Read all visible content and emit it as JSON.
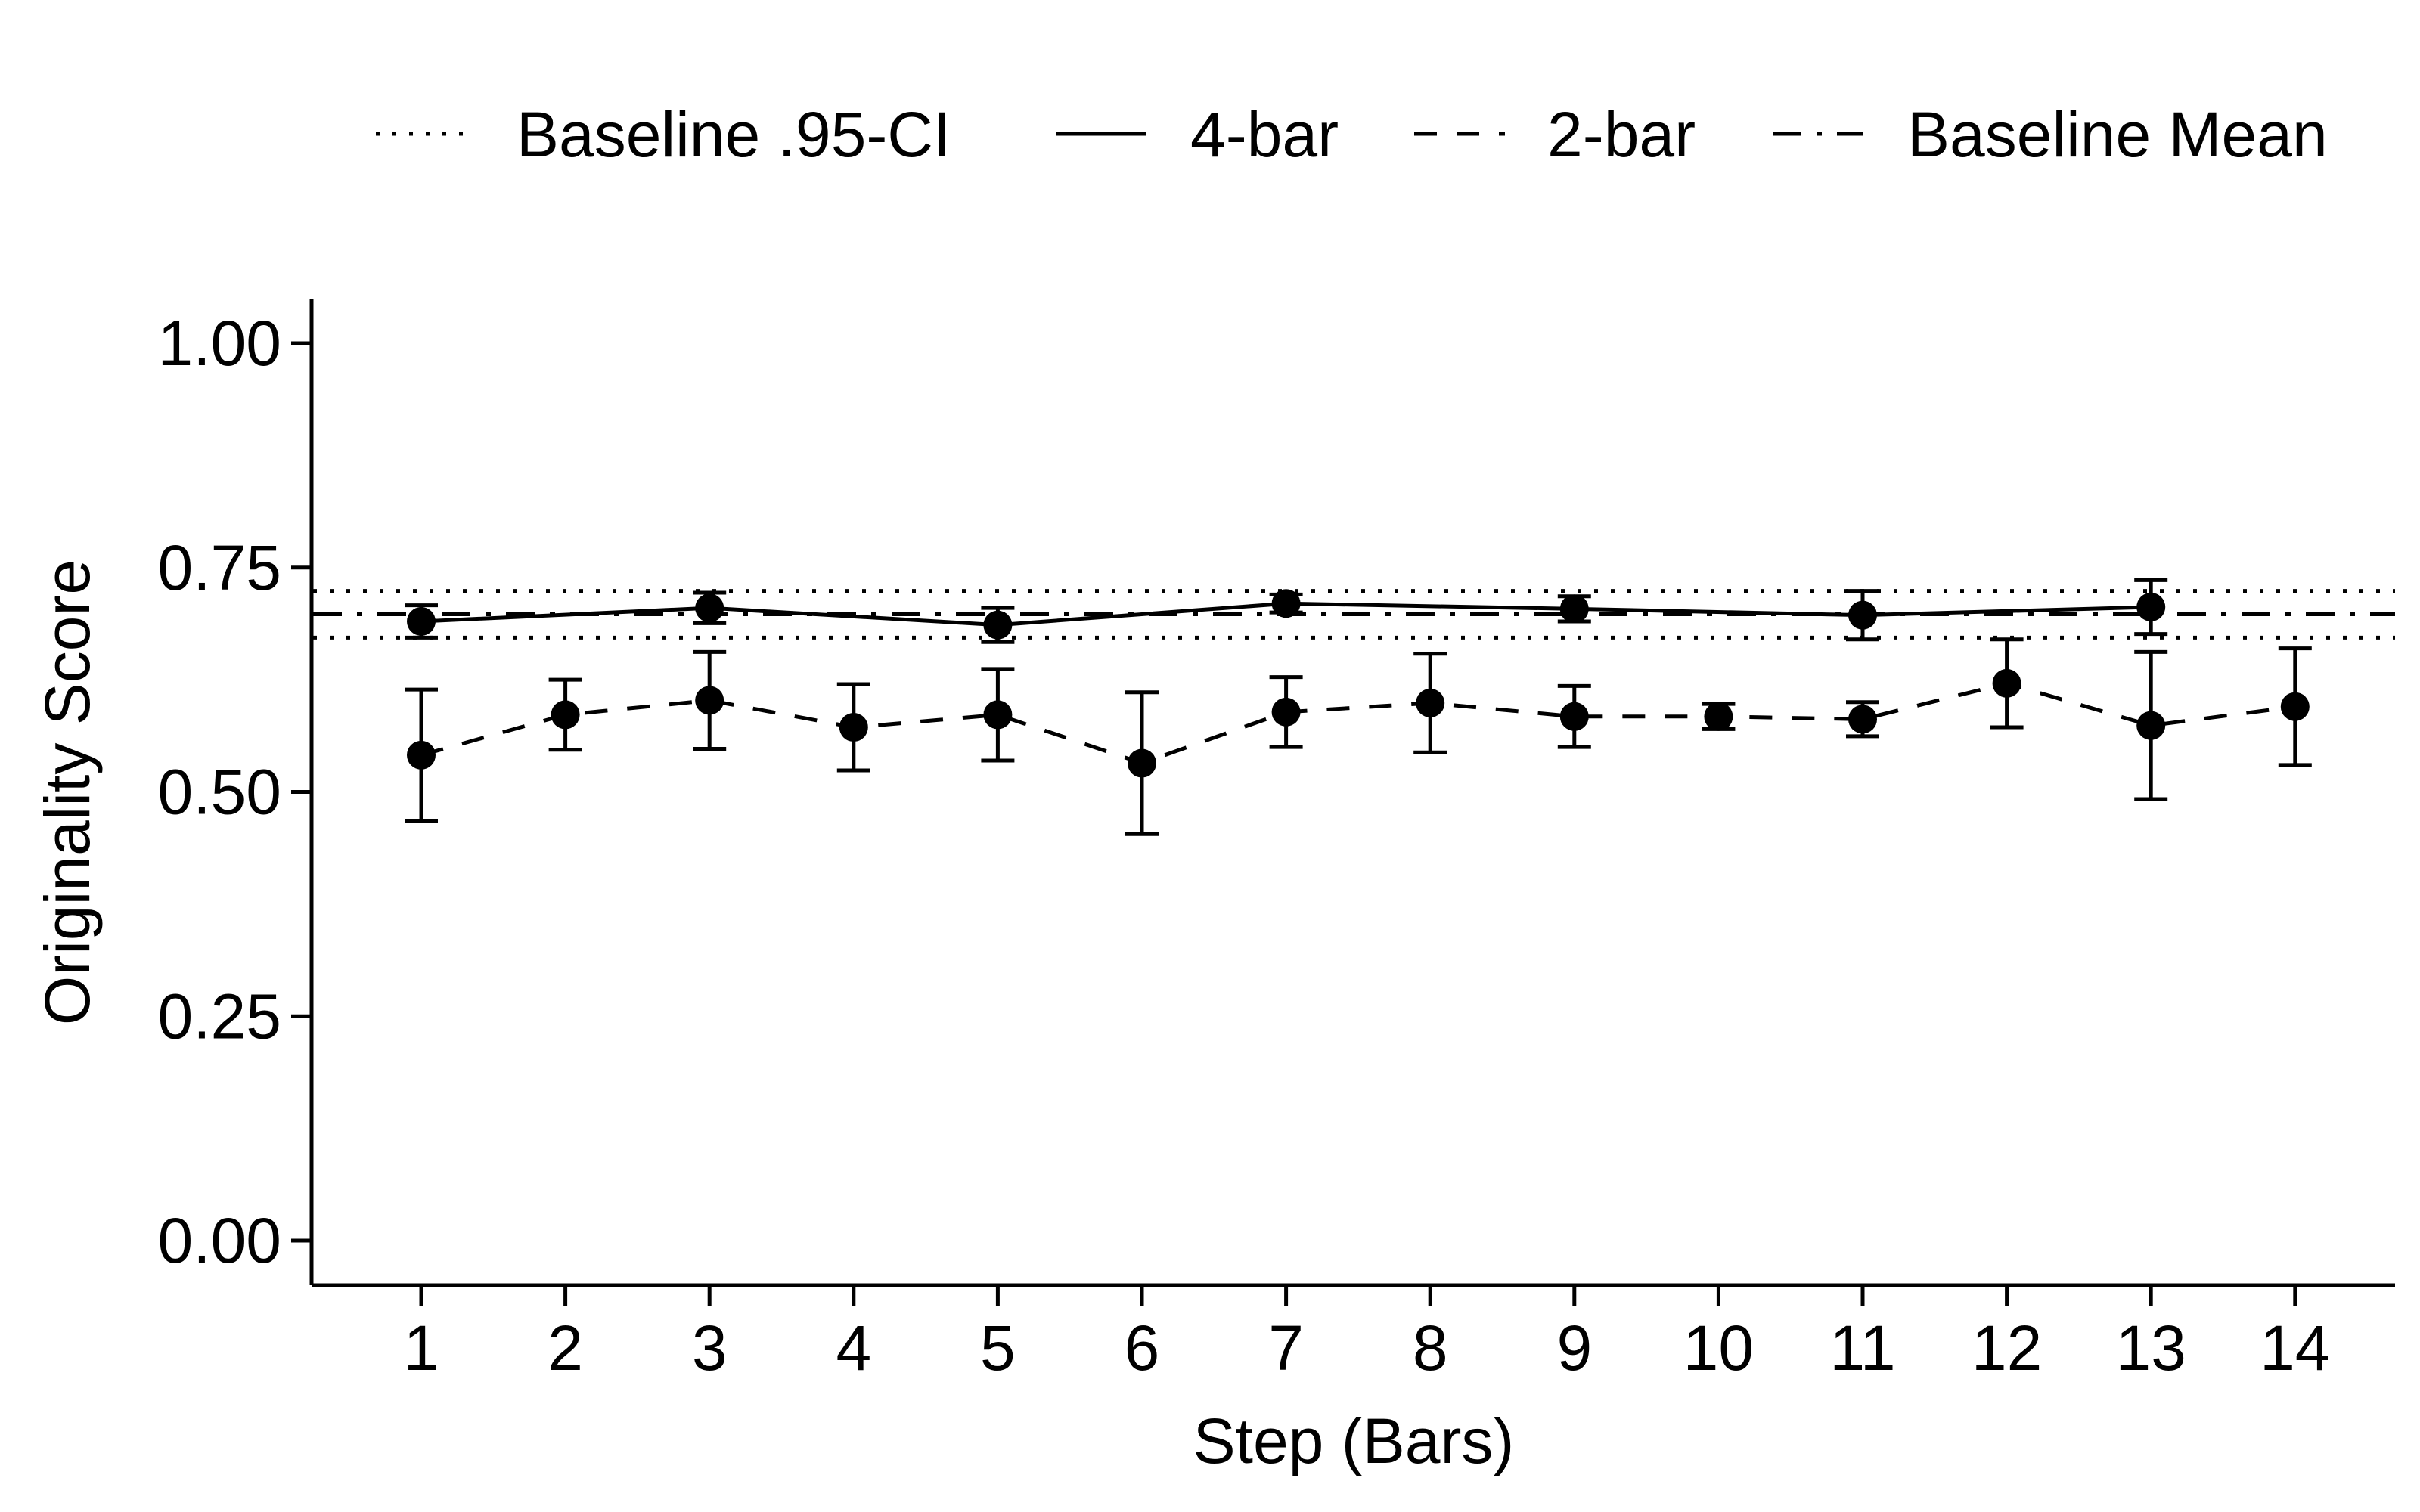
{
  "chart_data": {
    "type": "line",
    "title": "",
    "xlabel": "Step (Bars)",
    "ylabel": "Originality Score",
    "x": [
      1,
      2,
      3,
      4,
      5,
      6,
      7,
      8,
      9,
      10,
      11,
      12,
      13,
      14
    ],
    "xticks": [
      "1",
      "2",
      "3",
      "4",
      "5",
      "6",
      "7",
      "8",
      "9",
      "10",
      "11",
      "12",
      "13",
      "14"
    ],
    "yticks": [
      "0.00",
      "0.25",
      "0.50",
      "0.75",
      "1.00"
    ],
    "ylim": [
      0,
      1
    ],
    "grid": false,
    "legend_position": "top",
    "legend": [
      {
        "label": "Baseline .95-CI",
        "linestyle": "dotted"
      },
      {
        "label": "4-bar",
        "linestyle": "solid"
      },
      {
        "label": "2-bar",
        "linestyle": "dashed"
      },
      {
        "label": "Baseline Mean",
        "linestyle": "dashdot"
      }
    ],
    "series": [
      {
        "name": "4-bar",
        "linestyle": "solid",
        "points": [
          {
            "x": 1,
            "y": 0.69,
            "lo": 0.672,
            "hi": 0.708
          },
          {
            "x": 3,
            "y": 0.705,
            "lo": 0.688,
            "hi": 0.722
          },
          {
            "x": 5,
            "y": 0.686,
            "lo": 0.667,
            "hi": 0.705
          },
          {
            "x": 7,
            "y": 0.71,
            "lo": 0.7,
            "hi": 0.72
          },
          {
            "x": 9,
            "y": 0.704,
            "lo": 0.69,
            "hi": 0.718
          },
          {
            "x": 11,
            "y": 0.697,
            "lo": 0.67,
            "hi": 0.724
          },
          {
            "x": 13,
            "y": 0.706,
            "lo": 0.676,
            "hi": 0.736
          }
        ]
      },
      {
        "name": "2-bar",
        "linestyle": "dashed",
        "points": [
          {
            "x": 1,
            "y": 0.541,
            "lo": 0.468,
            "hi": 0.614
          },
          {
            "x": 2,
            "y": 0.586,
            "lo": 0.547,
            "hi": 0.625
          },
          {
            "x": 3,
            "y": 0.602,
            "lo": 0.548,
            "hi": 0.656
          },
          {
            "x": 4,
            "y": 0.572,
            "lo": 0.524,
            "hi": 0.62
          },
          {
            "x": 5,
            "y": 0.586,
            "lo": 0.535,
            "hi": 0.637
          },
          {
            "x": 6,
            "y": 0.532,
            "lo": 0.453,
            "hi": 0.611
          },
          {
            "x": 7,
            "y": 0.589,
            "lo": 0.55,
            "hi": 0.628
          },
          {
            "x": 8,
            "y": 0.599,
            "lo": 0.544,
            "hi": 0.654
          },
          {
            "x": 9,
            "y": 0.584,
            "lo": 0.55,
            "hi": 0.618
          },
          {
            "x": 10,
            "y": 0.584,
            "lo": 0.57,
            "hi": 0.598
          },
          {
            "x": 11,
            "y": 0.581,
            "lo": 0.562,
            "hi": 0.6
          },
          {
            "x": 12,
            "y": 0.621,
            "lo": 0.572,
            "hi": 0.67
          },
          {
            "x": 13,
            "y": 0.574,
            "lo": 0.492,
            "hi": 0.656
          },
          {
            "x": 14,
            "y": 0.595,
            "lo": 0.53,
            "hi": 0.66
          }
        ]
      }
    ],
    "reference_lines": [
      {
        "label": "Baseline Mean",
        "y": 0.698,
        "linestyle": "dashdot"
      },
      {
        "label": "Baseline .95-CI",
        "y": 0.724,
        "linestyle": "dotted"
      },
      {
        "label": "Baseline .95-CI",
        "y": 0.672,
        "linestyle": "dotted"
      }
    ]
  }
}
